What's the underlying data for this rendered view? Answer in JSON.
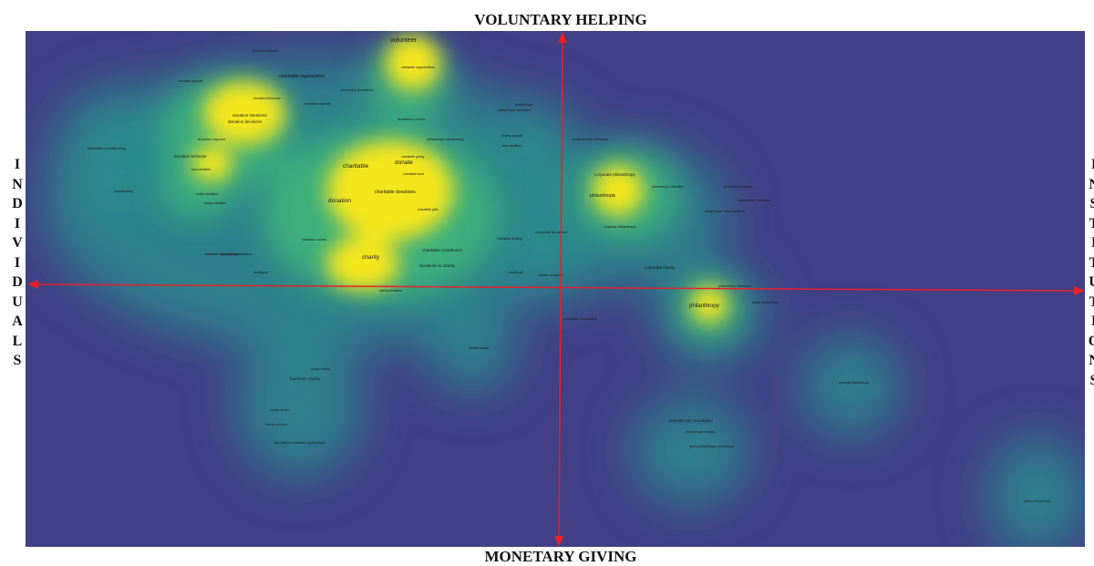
{
  "axis_titles": {
    "top": "VOLUNTARY HELPING",
    "bottom": "MONETARY GIVING",
    "left": "INDIVIDUALS",
    "right": "INSTITUTIONS"
  },
  "colors": {
    "background": "#413f86",
    "density_high": "#f4e61e",
    "density_mid": "#41b57a",
    "density_low": "#2c8c8c",
    "axis": "#e8202a"
  },
  "terms": [
    {
      "label": "volunteer",
      "size": "large"
    },
    {
      "label": "charitable behavior",
      "size": "tiny"
    },
    {
      "label": "charitable organizations",
      "size": "tiny"
    },
    {
      "label": "charitable organization",
      "size": "medium"
    },
    {
      "label": "monetary donations",
      "size": "small"
    },
    {
      "label": "donation appeals",
      "size": "tiny"
    },
    {
      "label": "donation behaviour",
      "size": "tiny"
    },
    {
      "label": "charitable requests",
      "size": "tiny"
    },
    {
      "label": "donation intentions",
      "size": "small"
    },
    {
      "label": "donation decisions",
      "size": "small"
    },
    {
      "label": "donations of time",
      "size": "small"
    },
    {
      "label": "philanthropy",
      "size": "small"
    },
    {
      "label": "philanthropic donations",
      "size": "tiny"
    },
    {
      "label": "donation request",
      "size": "small"
    },
    {
      "label": "charitable crowdfunding",
      "size": "small"
    },
    {
      "label": "charity appeals",
      "size": "tiny"
    },
    {
      "label": "time donation",
      "size": "tiny"
    },
    {
      "label": "philanthropic behavior",
      "size": "small"
    },
    {
      "label": "philanthropic volunteering",
      "size": "tiny"
    },
    {
      "label": "donation behavior",
      "size": "small"
    },
    {
      "label": "charitable",
      "size": "large"
    },
    {
      "label": "donate",
      "size": "large"
    },
    {
      "label": "charitable giving",
      "size": "tiny"
    },
    {
      "label": "charitable trust",
      "size": "tiny"
    },
    {
      "label": "corporate philanthropy",
      "size": "medium"
    },
    {
      "label": "trust donation",
      "size": "tiny"
    },
    {
      "label": "crowdfunding",
      "size": "tiny"
    },
    {
      "label": "online donation",
      "size": "tiny"
    },
    {
      "label": "charity donation",
      "size": "tiny"
    },
    {
      "label": "charitable donations",
      "size": "medium"
    },
    {
      "label": "donation",
      "size": "large"
    },
    {
      "label": "philanthropic",
      "size": "medium"
    },
    {
      "label": "philanthropic activities",
      "size": "tiny"
    },
    {
      "label": "philanthropic actions",
      "size": "tiny"
    },
    {
      "label": "philanthropic practices",
      "size": "tiny"
    },
    {
      "label": "philanthropic responsibilities",
      "size": "tiny"
    },
    {
      "label": "charitable gifts",
      "size": "tiny"
    },
    {
      "label": "corporate donations",
      "size": "small"
    },
    {
      "label": "corporate philanthropic",
      "size": "tiny"
    },
    {
      "label": "charitable causes",
      "size": "tiny"
    },
    {
      "label": "charitable lending",
      "size": "tiny"
    },
    {
      "label": "charity organization",
      "size": "small"
    },
    {
      "label": "charitable organisations",
      "size": "tiny"
    },
    {
      "label": "charity",
      "size": "large"
    },
    {
      "label": "charitable contribution",
      "size": "small"
    },
    {
      "label": "donations to charity",
      "size": "small"
    },
    {
      "label": "corporate charity",
      "size": "small"
    },
    {
      "label": "charity gift",
      "size": "tiny"
    },
    {
      "label": "private donations",
      "size": "tiny"
    },
    {
      "label": "charitypay",
      "size": "tiny"
    },
    {
      "label": "startup donation",
      "size": "tiny"
    },
    {
      "label": "philanthropic donations",
      "size": "tiny"
    },
    {
      "label": "donor philanthropy",
      "size": "tiny"
    },
    {
      "label": "philanthropy",
      "size": "large"
    },
    {
      "label": "charitable foundation",
      "size": "small"
    },
    {
      "label": "private charity",
      "size": "tiny"
    },
    {
      "label": "virtual charity",
      "size": "tiny"
    },
    {
      "label": "fundraise charity",
      "size": "medium"
    },
    {
      "label": "charity shows",
      "size": "tiny"
    },
    {
      "label": "charity auctions",
      "size": "tiny"
    },
    {
      "label": "international charitable organizations",
      "size": "tiny"
    },
    {
      "label": "philanthropic foundation",
      "size": "small"
    },
    {
      "label": "philanthropic funding",
      "size": "tiny"
    },
    {
      "label": "global philanthropic foundations",
      "size": "tiny"
    },
    {
      "label": "strategic philanthropy",
      "size": "tiny"
    },
    {
      "label": "global philanthropy",
      "size": "tiny"
    }
  ]
}
